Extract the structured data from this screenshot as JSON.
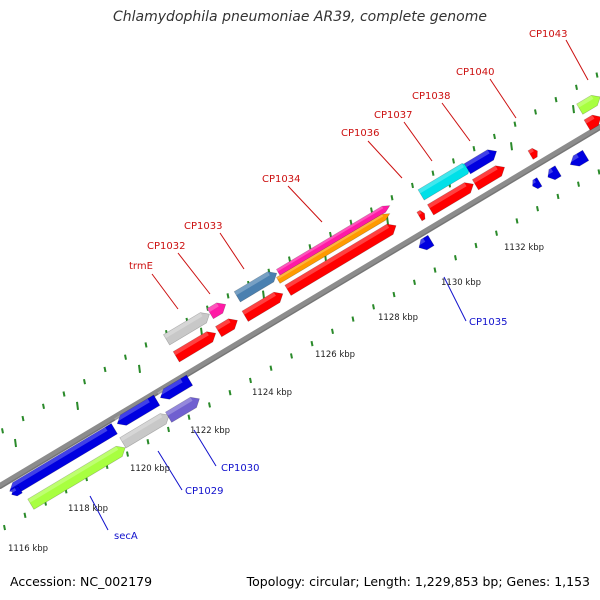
{
  "header": {
    "title": "Chlamydophila pneumoniae AR39, complete genome"
  },
  "footer": {
    "accession": "Accession: NC_002179",
    "summary": "Topology: circular; Length: 1,229,853 bp; Genes: 1,153"
  },
  "colors": {
    "backbone": "#8c8c8c",
    "tick": "#2a8a2a",
    "forward_label": "#cc1010",
    "reverse_label": "#1010cc",
    "red": "#ff0000",
    "blue": "#0000e0",
    "grey": "#c8c8c8",
    "pink": "#ff1aa6",
    "orange": "#ff9a00",
    "steelblue": "#4a80b0",
    "cyan": "#00e0e8",
    "lime": "#a8ff40",
    "slate": "#7060d0"
  },
  "scale": {
    "kbp_labels": [
      "1116 kbp",
      "1118 kbp",
      "1120 kbp",
      "1122 kbp",
      "1124 kbp",
      "1126 kbp",
      "1128 kbp",
      "1130 kbp",
      "1132 kbp"
    ]
  },
  "genes": {
    "forward": [
      "trmE",
      "CP1032",
      "CP1033",
      "CP1034",
      "CP1036",
      "CP1037",
      "CP1038",
      "CP1040",
      "CP1043"
    ],
    "reverse": [
      "secA",
      "CP1029",
      "CP1030",
      "CP1035"
    ]
  }
}
